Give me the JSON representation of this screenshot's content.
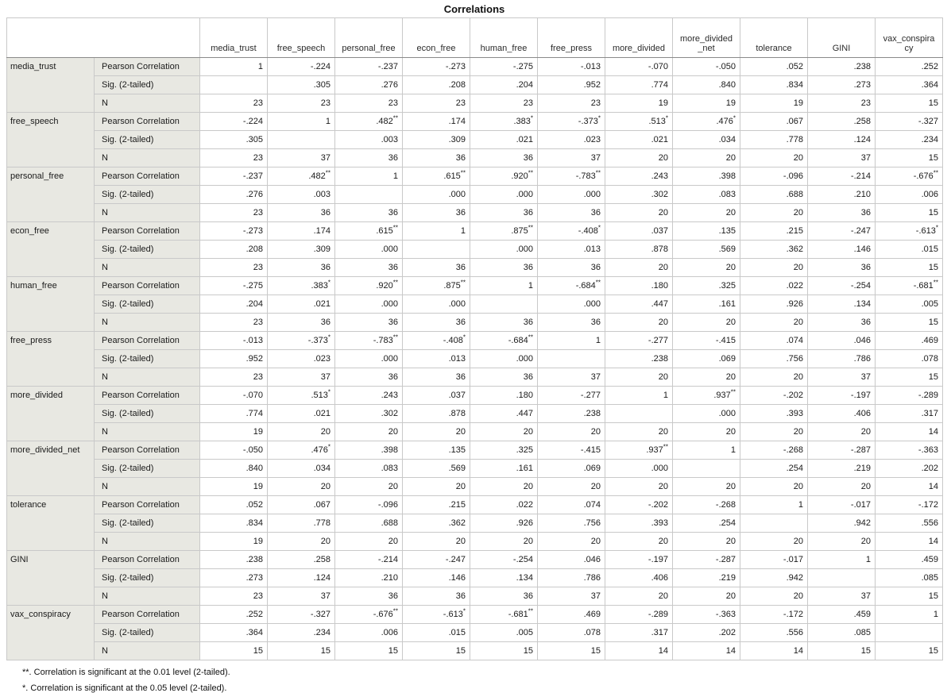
{
  "colors": {
    "label_bg": "#e8e8e2",
    "grid": "#c9c9c9",
    "frame": "#8a8a8a"
  },
  "chart_data": {
    "type": "table",
    "title": "Correlations",
    "columns": [
      "media_trust",
      "free_speech",
      "personal_free",
      "econ_free",
      "human_free",
      "free_press",
      "more_divided",
      "more_divided\n_net",
      "tolerance",
      "GINI",
      "vax_conspira\ncy"
    ],
    "statistics": [
      "Pearson Correlation",
      "Sig. (2-tailed)",
      "N"
    ],
    "rows": [
      {
        "var": "media_trust",
        "pearson": [
          "1",
          "-.224",
          "-.237",
          "-.273",
          "-.275",
          "-.013",
          "-.070",
          "-.050",
          ".052",
          ".238",
          ".252"
        ],
        "sig": [
          "",
          ".305",
          ".276",
          ".208",
          ".204",
          ".952",
          ".774",
          ".840",
          ".834",
          ".273",
          ".364"
        ],
        "n": [
          "23",
          "23",
          "23",
          "23",
          "23",
          "23",
          "19",
          "19",
          "19",
          "23",
          "15"
        ]
      },
      {
        "var": "free_speech",
        "pearson": [
          "-.224",
          "1",
          ".482**",
          ".174",
          ".383*",
          "-.373*",
          ".513*",
          ".476*",
          ".067",
          ".258",
          "-.327"
        ],
        "sig": [
          ".305",
          "",
          ".003",
          ".309",
          ".021",
          ".023",
          ".021",
          ".034",
          ".778",
          ".124",
          ".234"
        ],
        "n": [
          "23",
          "37",
          "36",
          "36",
          "36",
          "37",
          "20",
          "20",
          "20",
          "37",
          "15"
        ]
      },
      {
        "var": "personal_free",
        "pearson": [
          "-.237",
          ".482**",
          "1",
          ".615**",
          ".920**",
          "-.783**",
          ".243",
          ".398",
          "-.096",
          "-.214",
          "-.676**"
        ],
        "sig": [
          ".276",
          ".003",
          "",
          ".000",
          ".000",
          ".000",
          ".302",
          ".083",
          ".688",
          ".210",
          ".006"
        ],
        "n": [
          "23",
          "36",
          "36",
          "36",
          "36",
          "36",
          "20",
          "20",
          "20",
          "36",
          "15"
        ]
      },
      {
        "var": "econ_free",
        "pearson": [
          "-.273",
          ".174",
          ".615**",
          "1",
          ".875**",
          "-.408*",
          ".037",
          ".135",
          ".215",
          "-.247",
          "-.613*"
        ],
        "sig": [
          ".208",
          ".309",
          ".000",
          "",
          ".000",
          ".013",
          ".878",
          ".569",
          ".362",
          ".146",
          ".015"
        ],
        "n": [
          "23",
          "36",
          "36",
          "36",
          "36",
          "36",
          "20",
          "20",
          "20",
          "36",
          "15"
        ]
      },
      {
        "var": "human_free",
        "pearson": [
          "-.275",
          ".383*",
          ".920**",
          ".875**",
          "1",
          "-.684**",
          ".180",
          ".325",
          ".022",
          "-.254",
          "-.681**"
        ],
        "sig": [
          ".204",
          ".021",
          ".000",
          ".000",
          "",
          ".000",
          ".447",
          ".161",
          ".926",
          ".134",
          ".005"
        ],
        "n": [
          "23",
          "36",
          "36",
          "36",
          "36",
          "36",
          "20",
          "20",
          "20",
          "36",
          "15"
        ]
      },
      {
        "var": "free_press",
        "pearson": [
          "-.013",
          "-.373*",
          "-.783**",
          "-.408*",
          "-.684**",
          "1",
          "-.277",
          "-.415",
          ".074",
          ".046",
          ".469"
        ],
        "sig": [
          ".952",
          ".023",
          ".000",
          ".013",
          ".000",
          "",
          ".238",
          ".069",
          ".756",
          ".786",
          ".078"
        ],
        "n": [
          "23",
          "37",
          "36",
          "36",
          "36",
          "37",
          "20",
          "20",
          "20",
          "37",
          "15"
        ]
      },
      {
        "var": "more_divided",
        "pearson": [
          "-.070",
          ".513*",
          ".243",
          ".037",
          ".180",
          "-.277",
          "1",
          ".937**",
          "-.202",
          "-.197",
          "-.289"
        ],
        "sig": [
          ".774",
          ".021",
          ".302",
          ".878",
          ".447",
          ".238",
          "",
          ".000",
          ".393",
          ".406",
          ".317"
        ],
        "n": [
          "19",
          "20",
          "20",
          "20",
          "20",
          "20",
          "20",
          "20",
          "20",
          "20",
          "14"
        ]
      },
      {
        "var": "more_divided_net",
        "pearson": [
          "-.050",
          ".476*",
          ".398",
          ".135",
          ".325",
          "-.415",
          ".937**",
          "1",
          "-.268",
          "-.287",
          "-.363"
        ],
        "sig": [
          ".840",
          ".034",
          ".083",
          ".569",
          ".161",
          ".069",
          ".000",
          "",
          ".254",
          ".219",
          ".202"
        ],
        "n": [
          "19",
          "20",
          "20",
          "20",
          "20",
          "20",
          "20",
          "20",
          "20",
          "20",
          "14"
        ]
      },
      {
        "var": "tolerance",
        "pearson": [
          ".052",
          ".067",
          "-.096",
          ".215",
          ".022",
          ".074",
          "-.202",
          "-.268",
          "1",
          "-.017",
          "-.172"
        ],
        "sig": [
          ".834",
          ".778",
          ".688",
          ".362",
          ".926",
          ".756",
          ".393",
          ".254",
          "",
          ".942",
          ".556"
        ],
        "n": [
          "19",
          "20",
          "20",
          "20",
          "20",
          "20",
          "20",
          "20",
          "20",
          "20",
          "14"
        ]
      },
      {
        "var": "GINI",
        "pearson": [
          ".238",
          ".258",
          "-.214",
          "-.247",
          "-.254",
          ".046",
          "-.197",
          "-.287",
          "-.017",
          "1",
          ".459"
        ],
        "sig": [
          ".273",
          ".124",
          ".210",
          ".146",
          ".134",
          ".786",
          ".406",
          ".219",
          ".942",
          "",
          ".085"
        ],
        "n": [
          "23",
          "37",
          "36",
          "36",
          "36",
          "37",
          "20",
          "20",
          "20",
          "37",
          "15"
        ]
      },
      {
        "var": "vax_conspiracy",
        "pearson": [
          ".252",
          "-.327",
          "-.676**",
          "-.613*",
          "-.681**",
          ".469",
          "-.289",
          "-.363",
          "-.172",
          ".459",
          "1"
        ],
        "sig": [
          ".364",
          ".234",
          ".006",
          ".015",
          ".005",
          ".078",
          ".317",
          ".202",
          ".556",
          ".085",
          ""
        ],
        "n": [
          "15",
          "15",
          "15",
          "15",
          "15",
          "15",
          "14",
          "14",
          "14",
          "15",
          "15"
        ]
      }
    ],
    "footnotes": [
      "**. Correlation is significant at the 0.01 level (2-tailed).",
      "*. Correlation is significant at the 0.05 level (2-tailed)."
    ]
  }
}
